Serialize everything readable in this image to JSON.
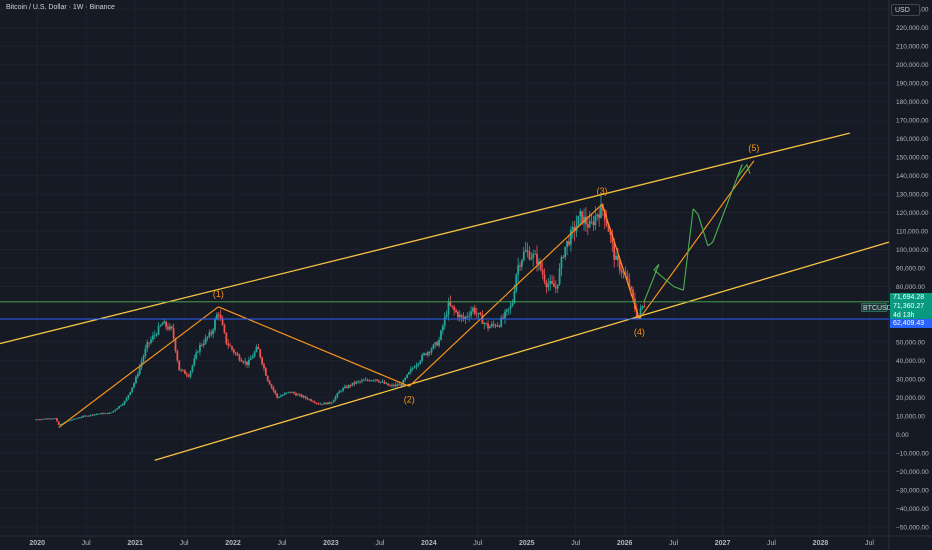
{
  "header": {
    "title": "Bitcoin / U.S. Dollar · 1W · Binance",
    "currency": "USD"
  },
  "price_tags": {
    "symbol": "BTCUSD",
    "current_price": "71,694.28",
    "close_price": "71,360.27",
    "countdown": "4d 13h",
    "horizontal_level": "62,409.43"
  },
  "wave_labels": [
    "(1)",
    "(2)",
    "(3)",
    "(4)",
    "(5)"
  ],
  "colors": {
    "background": "#161a25",
    "grid": "#1e222d",
    "up_candle": "#26a69a",
    "down_candle": "#ef5350",
    "channel": "#f5c242",
    "wave": "#f7931a",
    "projection": "#4caf50",
    "current_line": "#4caf50",
    "level_line": "#2962ff",
    "axis_text": "#b2b5be"
  },
  "chart_data": {
    "type": "candlestick",
    "timeframe": "1W",
    "x_axis_labels": [
      "2020",
      "Jul",
      "2021",
      "Jul",
      "2022",
      "Jul",
      "2023",
      "Jul",
      "2024",
      "Jul",
      "2025",
      "Jul",
      "2026",
      "Jul",
      "2027",
      "Jul",
      "2028",
      "Jul"
    ],
    "x_axis_label_years": [
      2020.0,
      2020.5,
      2021.0,
      2021.5,
      2022.0,
      2022.5,
      2023.0,
      2023.5,
      2024.0,
      2024.5,
      2025.0,
      2025.5,
      2026.0,
      2026.5,
      2027.0,
      2027.5,
      2028.0,
      2028.5
    ],
    "y_axis_labels": [
      "230,000.00",
      "220,000.00",
      "210,000.00",
      "200,000.00",
      "190,000.00",
      "180,000.00",
      "170,000.00",
      "160,000.00",
      "150,000.00",
      "140,000.00",
      "130,000.00",
      "120,000.00",
      "110,000.00",
      "100,000.00",
      "90,000.00",
      "80,000.00",
      "50,000.00",
      "40,000.00",
      "30,000.00",
      "20,000.00",
      "10,000.00",
      "0.00",
      "−10,000.00",
      "−20,000.00",
      "−30,000.00",
      "−40,000.00",
      "−50,000.00"
    ],
    "y_axis_label_values": [
      230000,
      220000,
      210000,
      200000,
      190000,
      180000,
      170000,
      160000,
      150000,
      140000,
      130000,
      120000,
      110000,
      100000,
      90000,
      80000,
      50000,
      40000,
      30000,
      20000,
      10000,
      0,
      -10000,
      -20000,
      -30000,
      -40000,
      -50000
    ],
    "price_path": [
      [
        2019.97,
        8000
      ],
      [
        2020.18,
        8800
      ],
      [
        2020.22,
        5000
      ],
      [
        2020.3,
        7000
      ],
      [
        2020.45,
        9500
      ],
      [
        2020.6,
        11000
      ],
      [
        2020.75,
        11500
      ],
      [
        2020.9,
        18000
      ],
      [
        2021.0,
        29000
      ],
      [
        2021.12,
        48000
      ],
      [
        2021.28,
        60000
      ],
      [
        2021.38,
        56000
      ],
      [
        2021.45,
        35000
      ],
      [
        2021.55,
        32000
      ],
      [
        2021.65,
        47000
      ],
      [
        2021.78,
        55000
      ],
      [
        2021.85,
        67000
      ],
      [
        2021.93,
        50000
      ],
      [
        2022.05,
        42000
      ],
      [
        2022.15,
        38000
      ],
      [
        2022.25,
        47000
      ],
      [
        2022.35,
        30000
      ],
      [
        2022.45,
        20000
      ],
      [
        2022.58,
        23000
      ],
      [
        2022.75,
        19500
      ],
      [
        2022.88,
        16500
      ],
      [
        2023.0,
        17000
      ],
      [
        2023.1,
        24000
      ],
      [
        2023.25,
        28000
      ],
      [
        2023.45,
        30000
      ],
      [
        2023.6,
        26000
      ],
      [
        2023.72,
        27000
      ],
      [
        2023.82,
        35000
      ],
      [
        2023.95,
        43000
      ],
      [
        2024.1,
        50000
      ],
      [
        2024.2,
        70000
      ],
      [
        2024.35,
        62000
      ],
      [
        2024.45,
        68000
      ],
      [
        2024.6,
        58000
      ],
      [
        2024.72,
        60000
      ],
      [
        2024.85,
        70000
      ],
      [
        2024.9,
        90000
      ],
      [
        2024.98,
        99000
      ],
      [
        2025.1,
        95000
      ],
      [
        2025.2,
        82000
      ],
      [
        2025.3,
        79000
      ],
      [
        2025.38,
        100000
      ],
      [
        2025.55,
        118000
      ],
      [
        2025.65,
        112000
      ],
      [
        2025.72,
        120000
      ],
      [
        2025.78,
        122000
      ],
      [
        2025.85,
        108000
      ],
      [
        2025.9,
        95000
      ],
      [
        2025.98,
        88000
      ],
      [
        2026.05,
        80000
      ],
      [
        2026.13,
        63000
      ],
      [
        2026.18,
        69000
      ],
      [
        2026.21,
        71360
      ]
    ],
    "wave_points": [
      {
        "label": "start",
        "x": 2020.22,
        "y": 3700
      },
      {
        "label": "(1)",
        "x": 2021.85,
        "y": 69000
      },
      {
        "label": "(2)",
        "x": 2023.8,
        "y": 26000
      },
      {
        "label": "(3)",
        "x": 2025.77,
        "y": 124500
      },
      {
        "label": "(4)",
        "x": 2026.15,
        "y": 62500
      },
      {
        "label": "(5)",
        "x": 2027.32,
        "y": 148000
      }
    ],
    "channel_upper": [
      [
        2019.0,
        41000
      ],
      [
        2028.3,
        163000
      ]
    ],
    "channel_lower": [
      [
        2021.2,
        -14000
      ],
      [
        2028.7,
        104000
      ]
    ],
    "projection_path": [
      [
        2026.2,
        72000
      ],
      [
        2026.35,
        92000
      ],
      [
        2026.3,
        89000
      ],
      [
        2026.5,
        80000
      ],
      [
        2026.6,
        78000
      ],
      [
        2026.7,
        122000
      ],
      [
        2026.75,
        119000
      ],
      [
        2026.85,
        102000
      ],
      [
        2026.9,
        104000
      ],
      [
        2027.2,
        146000
      ],
      [
        2027.15,
        139000
      ],
      [
        2027.25,
        146000
      ],
      [
        2027.28,
        141000
      ]
    ],
    "current_price": 71694.28,
    "horizontal_level": 62409.43,
    "x_range": [
      2019.62,
      2028.7
    ],
    "y_range": [
      -55000,
      235000
    ]
  }
}
